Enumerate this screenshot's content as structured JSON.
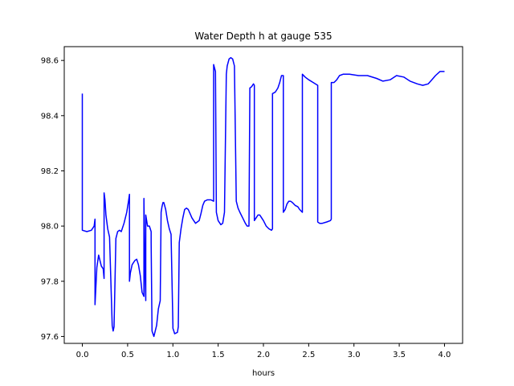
{
  "chart_data": {
    "type": "line",
    "title": "Water Depth h at gauge 535",
    "xlabel": "hours",
    "ylabel": "",
    "xlim": [
      -0.2,
      4.2
    ],
    "ylim": [
      97.575,
      98.65
    ],
    "xticks": [
      0.0,
      0.5,
      1.0,
      1.5,
      2.0,
      2.5,
      3.0,
      3.5,
      4.0
    ],
    "xtick_labels": [
      "0.0",
      "0.5",
      "1.0",
      "1.5",
      "2.0",
      "2.5",
      "3.0",
      "3.5",
      "4.0"
    ],
    "yticks": [
      97.6,
      97.8,
      98.0,
      98.2,
      98.4,
      98.6
    ],
    "ytick_labels": [
      "97.6",
      "97.8",
      "98.0",
      "98.2",
      "98.4",
      "98.6"
    ],
    "grid": false,
    "series": [
      {
        "color": "#0000ff",
        "x": [
          0.0,
          0.0,
          0.05,
          0.1,
          0.13,
          0.14,
          0.14,
          0.16,
          0.18,
          0.21,
          0.23,
          0.24,
          0.24,
          0.25,
          0.26,
          0.28,
          0.3,
          0.33,
          0.34,
          0.35,
          0.37,
          0.39,
          0.41,
          0.43,
          0.46,
          0.49,
          0.51,
          0.52,
          0.52,
          0.53,
          0.55,
          0.58,
          0.6,
          0.62,
          0.64,
          0.66,
          0.68,
          0.68,
          0.69,
          0.7,
          0.7,
          0.71,
          0.72,
          0.74,
          0.76,
          0.76,
          0.77,
          0.79,
          0.82,
          0.84,
          0.86,
          0.87,
          0.88,
          0.89,
          0.9,
          0.92,
          0.94,
          0.96,
          0.98,
          1.0,
          1.0,
          1.02,
          1.05,
          1.06,
          1.07,
          1.09,
          1.11,
          1.13,
          1.15,
          1.17,
          1.19,
          1.21,
          1.23,
          1.25,
          1.27,
          1.29,
          1.31,
          1.33,
          1.35,
          1.38,
          1.42,
          1.45,
          1.45,
          1.47,
          1.48,
          1.5,
          1.53,
          1.55,
          1.57,
          1.59,
          1.6,
          1.62,
          1.64,
          1.66,
          1.68,
          1.7,
          1.72,
          1.72,
          1.74,
          1.77,
          1.8,
          1.82,
          1.84,
          1.85,
          1.85,
          1.87,
          1.89,
          1.9,
          1.9,
          1.92,
          1.94,
          1.96,
          1.98,
          2.0,
          2.03,
          2.06,
          2.09,
          2.1,
          2.1,
          2.13,
          2.16,
          2.18,
          2.2,
          2.22,
          2.22,
          2.24,
          2.26,
          2.28,
          2.3,
          2.32,
          2.35,
          2.38,
          2.4,
          2.43,
          2.43,
          2.46,
          2.5,
          2.55,
          2.6,
          2.6,
          2.62,
          2.65,
          2.7,
          2.74,
          2.75,
          2.75,
          2.78,
          2.81,
          2.84,
          2.88,
          2.95,
          3.05,
          3.15,
          3.25,
          3.32,
          3.4,
          3.47,
          3.55,
          3.62,
          3.7,
          3.76,
          3.82,
          3.86,
          3.9,
          3.95,
          4.0
        ],
        "values": [
          98.48,
          97.985,
          97.98,
          97.985,
          98.0,
          98.025,
          97.715,
          97.85,
          97.895,
          97.855,
          97.845,
          97.81,
          98.12,
          98.095,
          98.04,
          97.99,
          97.96,
          97.64,
          97.62,
          97.635,
          97.955,
          97.98,
          97.985,
          97.98,
          98.01,
          98.05,
          98.09,
          98.115,
          97.8,
          97.83,
          97.86,
          97.875,
          97.88,
          97.86,
          97.82,
          97.76,
          97.745,
          98.1,
          97.86,
          97.73,
          98.04,
          98.02,
          98.0,
          98.0,
          97.98,
          97.94,
          97.62,
          97.6,
          97.64,
          97.7,
          97.73,
          98.05,
          98.07,
          98.085,
          98.085,
          98.06,
          98.02,
          97.99,
          97.97,
          97.64,
          97.63,
          97.61,
          97.615,
          97.635,
          97.94,
          97.99,
          98.03,
          98.06,
          98.065,
          98.06,
          98.045,
          98.03,
          98.02,
          98.01,
          98.015,
          98.02,
          98.045,
          98.075,
          98.09,
          98.095,
          98.095,
          98.09,
          98.585,
          98.56,
          98.05,
          98.02,
          98.005,
          98.01,
          98.05,
          98.55,
          98.58,
          98.605,
          98.61,
          98.605,
          98.58,
          98.09,
          98.065,
          98.065,
          98.05,
          98.03,
          98.01,
          98.0,
          98.0,
          98.5,
          98.5,
          98.505,
          98.515,
          98.51,
          98.02,
          98.03,
          98.04,
          98.04,
          98.03,
          98.02,
          98.0,
          97.99,
          97.985,
          97.99,
          98.48,
          98.485,
          98.5,
          98.52,
          98.545,
          98.545,
          98.05,
          98.06,
          98.08,
          98.09,
          98.09,
          98.085,
          98.075,
          98.07,
          98.06,
          98.05,
          98.55,
          98.54,
          98.53,
          98.52,
          98.51,
          98.015,
          98.01,
          98.01,
          98.015,
          98.02,
          98.025,
          98.52,
          98.52,
          98.53,
          98.545,
          98.55,
          98.55,
          98.545,
          98.545,
          98.535,
          98.525,
          98.53,
          98.545,
          98.54,
          98.525,
          98.515,
          98.51,
          98.515,
          98.53,
          98.545,
          98.56,
          98.56
        ]
      }
    ]
  }
}
